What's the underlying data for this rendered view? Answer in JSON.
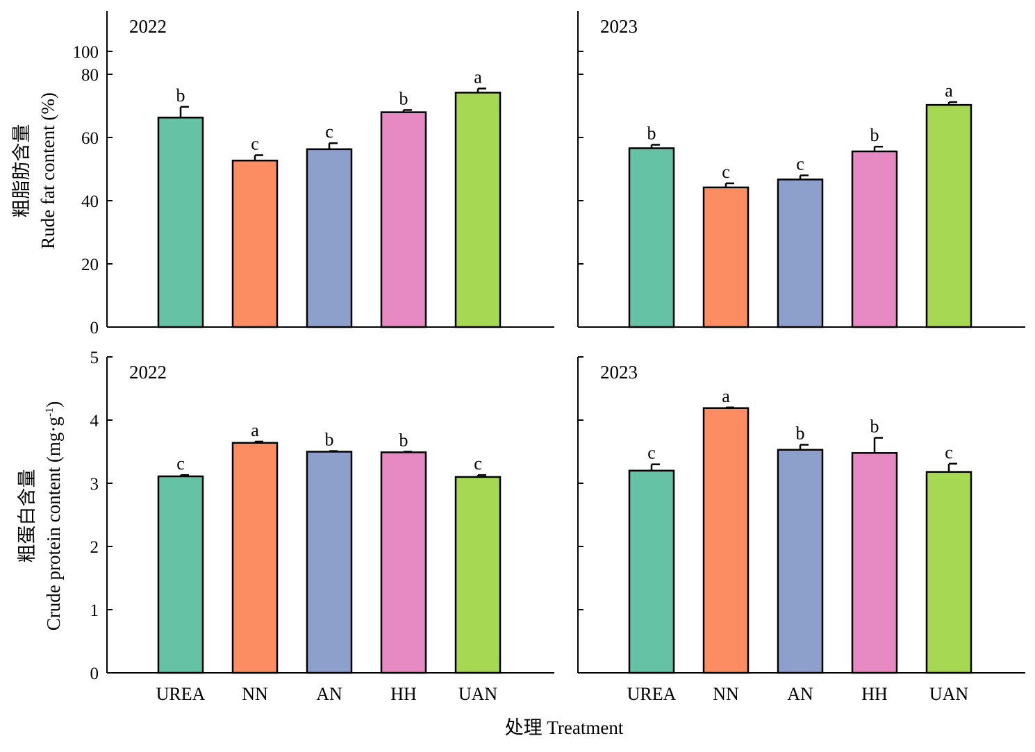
{
  "figure": {
    "xlabel": "处理 Treatment",
    "categories": [
      "UREA",
      "NN",
      "AN",
      "HH",
      "UAN"
    ],
    "colors": [
      "#66c2a5",
      "#fc8d62",
      "#8da0cb",
      "#e78ac3",
      "#a6d854"
    ],
    "rows": [
      {
        "ylabel_cn": "粗脂肪含量",
        "ylabel_en": "Rude fat content (%)",
        "yticks": [
          0,
          20,
          40,
          60,
          80,
          100
        ]
      },
      {
        "ylabel_cn": "粗蛋白含量",
        "ylabel_en_main": "Crude protein content (mg·g",
        "ylabel_en_sup": "-1",
        "ylabel_en_end": ")",
        "yticks": [
          0,
          1,
          2,
          3,
          4,
          5
        ]
      }
    ]
  },
  "chart_data": [
    {
      "type": "bar",
      "title": "2022",
      "ylabel": "Rude fat content (%)",
      "ylim": [
        0,
        115
      ],
      "categories": [
        "UREA",
        "NN",
        "AN",
        "HH",
        "UAN"
      ],
      "values": [
        66.3,
        52.7,
        56.3,
        68.0,
        74.2
      ],
      "errors": [
        3.4,
        1.7,
        1.9,
        0.7,
        1.3
      ],
      "letters": [
        "b",
        "c",
        "c",
        "b",
        "a"
      ]
    },
    {
      "type": "bar",
      "title": "2023",
      "ylabel": "Rude fat content (%)",
      "ylim": [
        0,
        115
      ],
      "categories": [
        "UREA",
        "NN",
        "AN",
        "HH",
        "UAN"
      ],
      "values": [
        56.6,
        44.2,
        46.7,
        55.6,
        70.3
      ],
      "errors": [
        1.1,
        1.3,
        1.3,
        1.5,
        0.9
      ],
      "letters": [
        "b",
        "c",
        "c",
        "b",
        "a"
      ]
    },
    {
      "type": "bar",
      "title": "2022",
      "ylabel": "Crude protein content (mg·g-1)",
      "ylim": [
        0,
        5
      ],
      "categories": [
        "UREA",
        "NN",
        "AN",
        "HH",
        "UAN"
      ],
      "values": [
        3.11,
        3.64,
        3.5,
        3.49,
        3.1
      ],
      "errors": [
        0.02,
        0.02,
        0.01,
        0.01,
        0.03
      ],
      "letters": [
        "c",
        "a",
        "b",
        "b",
        "c"
      ]
    },
    {
      "type": "bar",
      "title": "2023",
      "ylabel": "Crude protein content (mg·g-1)",
      "ylim": [
        0,
        5
      ],
      "categories": [
        "UREA",
        "NN",
        "AN",
        "HH",
        "UAN"
      ],
      "values": [
        3.2,
        4.19,
        3.53,
        3.48,
        3.18
      ],
      "errors": [
        0.1,
        0.01,
        0.08,
        0.24,
        0.13
      ],
      "letters": [
        "c",
        "a",
        "b",
        "b",
        "c"
      ]
    }
  ]
}
